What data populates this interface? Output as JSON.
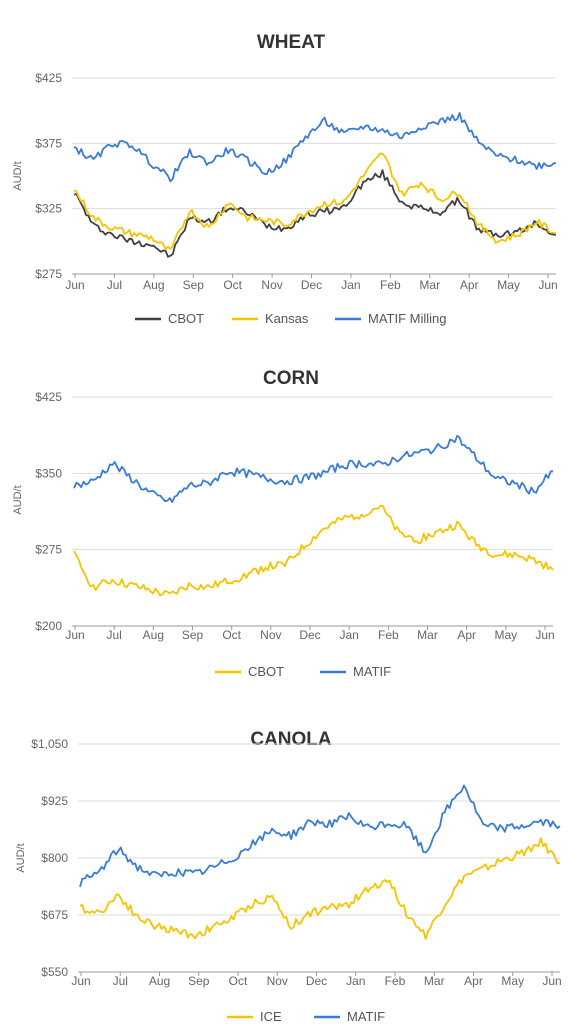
{
  "charts": [
    {
      "title": "WHEAT",
      "ylabel": "AUD/t",
      "yticks": [
        "$425",
        "$375",
        "$325",
        "$275"
      ]
    },
    {
      "title": "CORN",
      "ylabel": "AUD/t",
      "yticks": [
        "$425",
        "$350",
        "$275",
        "$200"
      ]
    },
    {
      "title": "CANOLA",
      "ylabel": "AUD/t",
      "yticks": [
        "$1,050",
        "$925",
        "$800",
        "$675",
        "$550"
      ]
    }
  ],
  "chart_data": [
    {
      "type": "line",
      "title": "WHEAT",
      "ylabel": "AUD/t",
      "ylim": [
        275,
        425
      ],
      "x_tick_labels": [
        "Jun",
        "Jul",
        "Aug",
        "Sep",
        "Oct",
        "Nov",
        "Dec",
        "Jan",
        "Feb",
        "Mar",
        "Apr",
        "May",
        "Jun"
      ],
      "legend_position": "bottom",
      "grid": true,
      "series": [
        {
          "name": "CBOT",
          "color": "#404040",
          "x": [
            "Jun",
            "mid-Jun",
            "Jul",
            "mid-Jul",
            "Aug",
            "mid-Aug",
            "Sep",
            "mid-Sep",
            "Oct",
            "mid-Oct",
            "Nov",
            "mid-Nov",
            "Dec",
            "mid-Dec",
            "Jan",
            "mid-Jan",
            "Feb",
            "mid-Feb",
            "Mar",
            "mid-Mar",
            "Apr",
            "mid-Apr",
            "May",
            "mid-May",
            "Jun",
            "end"
          ],
          "values": [
            338,
            312,
            305,
            300,
            298,
            288,
            318,
            315,
            326,
            322,
            312,
            310,
            320,
            323,
            326,
            345,
            352,
            330,
            325,
            322,
            332,
            308,
            305,
            307,
            314,
            305
          ]
        },
        {
          "name": "Kansas",
          "color": "#f5c400",
          "x": [
            "Jun",
            "mid-Jun",
            "Jul",
            "mid-Jul",
            "Aug",
            "mid-Aug",
            "Sep",
            "mid-Sep",
            "Oct",
            "mid-Oct",
            "Nov",
            "mid-Nov",
            "Dec",
            "mid-Dec",
            "Jan",
            "mid-Jan",
            "Feb",
            "mid-Feb",
            "Mar",
            "mid-Mar",
            "Apr",
            "mid-Apr",
            "May",
            "mid-May",
            "Jun",
            "end"
          ],
          "values": [
            340,
            318,
            310,
            306,
            303,
            292,
            324,
            310,
            330,
            318,
            316,
            313,
            322,
            329,
            330,
            350,
            368,
            336,
            345,
            332,
            338,
            312,
            300,
            305,
            315,
            306
          ]
        },
        {
          "name": "MATIF Milling",
          "color": "#3a7bd5",
          "x": [
            "Jun",
            "mid-Jun",
            "Jul",
            "mid-Jul",
            "Aug",
            "mid-Aug",
            "Sep",
            "mid-Sep",
            "Oct",
            "mid-Oct",
            "Nov",
            "mid-Nov",
            "Dec",
            "mid-Dec",
            "Jan",
            "mid-Jan",
            "Feb",
            "mid-Feb",
            "Mar",
            "mid-Mar",
            "Apr",
            "mid-Apr",
            "May",
            "mid-May",
            "Jun",
            "end"
          ],
          "values": [
            372,
            362,
            375,
            374,
            360,
            348,
            368,
            360,
            370,
            362,
            352,
            362,
            380,
            392,
            382,
            388,
            385,
            380,
            388,
            392,
            396,
            375,
            365,
            362,
            358,
            360
          ]
        }
      ]
    },
    {
      "type": "line",
      "title": "CORN",
      "ylabel": "AUD/t",
      "ylim": [
        200,
        425
      ],
      "x_tick_labels": [
        "Jun",
        "Jul",
        "Aug",
        "Sep",
        "Oct",
        "Nov",
        "Dec",
        "Jan",
        "Feb",
        "Mar",
        "Apr",
        "May",
        "Jun"
      ],
      "legend_position": "bottom",
      "grid": true,
      "series": [
        {
          "name": "CBOT",
          "color": "#f5c400",
          "x": [
            "Jun",
            "mid-Jun",
            "Jul",
            "mid-Jul",
            "Aug",
            "mid-Aug",
            "Sep",
            "mid-Sep",
            "Oct",
            "mid-Oct",
            "Nov",
            "mid-Nov",
            "Dec",
            "mid-Dec",
            "Jan",
            "mid-Jan",
            "Feb",
            "mid-Feb",
            "Mar",
            "mid-Mar",
            "Apr",
            "mid-Apr",
            "May",
            "mid-May",
            "Jun",
            "end"
          ],
          "values": [
            270,
            238,
            245,
            240,
            235,
            230,
            240,
            238,
            244,
            250,
            258,
            260,
            278,
            295,
            305,
            310,
            318,
            290,
            285,
            292,
            300,
            280,
            270,
            270,
            265,
            255
          ]
        },
        {
          "name": "MATIF",
          "color": "#3a7bd5",
          "x": [
            "Jun",
            "mid-Jun",
            "Jul",
            "mid-Jul",
            "Aug",
            "mid-Aug",
            "Sep",
            "mid-Sep",
            "Oct",
            "mid-Oct",
            "Nov",
            "mid-Nov",
            "Dec",
            "mid-Dec",
            "Jan",
            "mid-Jan",
            "Feb",
            "mid-Feb",
            "Mar",
            "mid-Mar",
            "Apr",
            "mid-Apr",
            "May",
            "mid-May",
            "Jun",
            "end"
          ],
          "values": [
            338,
            342,
            360,
            345,
            330,
            322,
            338,
            340,
            352,
            350,
            345,
            342,
            345,
            350,
            358,
            360,
            358,
            366,
            370,
            375,
            385,
            365,
            345,
            340,
            332,
            352
          ]
        }
      ]
    },
    {
      "type": "line",
      "title": "CANOLA",
      "ylabel": "AUD/t",
      "ylim": [
        550,
        1050
      ],
      "x_tick_labels": [
        "Jun",
        "Jul",
        "Aug",
        "Sep",
        "Oct",
        "Nov",
        "Dec",
        "Jan",
        "Feb",
        "Mar",
        "Apr",
        "May",
        "Jun"
      ],
      "legend_position": "bottom",
      "grid": true,
      "series": [
        {
          "name": "ICE",
          "color": "#f5c400",
          "x": [
            "Jun",
            "mid-Jun",
            "Jul",
            "mid-Jul",
            "Aug",
            "mid-Aug",
            "Sep",
            "mid-Sep",
            "Oct",
            "mid-Oct",
            "Nov",
            "mid-Nov",
            "Dec",
            "mid-Dec",
            "Jan",
            "mid-Jan",
            "Feb",
            "mid-Feb",
            "Mar",
            "mid-Mar",
            "Apr",
            "mid-Apr",
            "May",
            "mid-May",
            "Jun",
            "end"
          ],
          "values": [
            690,
            680,
            720,
            670,
            650,
            640,
            630,
            650,
            670,
            700,
            715,
            650,
            680,
            690,
            700,
            730,
            755,
            680,
            630,
            700,
            760,
            775,
            795,
            810,
            835,
            790
          ]
        },
        {
          "name": "MATIF",
          "color": "#3a7bd5",
          "x": [
            "Jun",
            "mid-Jun",
            "Jul",
            "mid-Jul",
            "Aug",
            "mid-Aug",
            "Sep",
            "mid-Sep",
            "Oct",
            "mid-Oct",
            "Nov",
            "mid-Nov",
            "Dec",
            "mid-Dec",
            "Jan",
            "mid-Jan",
            "Feb",
            "mid-Feb",
            "Mar",
            "mid-Mar",
            "Apr",
            "mid-Apr",
            "May",
            "mid-May",
            "Jun",
            "end"
          ],
          "values": [
            745,
            770,
            820,
            780,
            760,
            770,
            765,
            780,
            800,
            830,
            860,
            850,
            880,
            875,
            890,
            865,
            875,
            870,
            810,
            900,
            960,
            870,
            865,
            870,
            880,
            870
          ]
        }
      ]
    }
  ]
}
